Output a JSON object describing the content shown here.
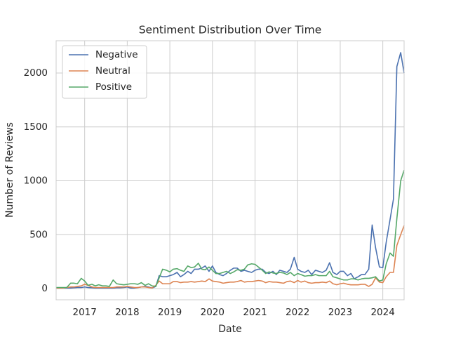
{
  "chart_data": {
    "type": "line",
    "title": "Sentiment Distribution Over Time",
    "x_label": "Date",
    "y_label": "Number of Reviews",
    "x": [
      2016.33,
      2016.42,
      2016.5,
      2016.58,
      2016.67,
      2016.75,
      2016.83,
      2016.92,
      2017.0,
      2017.08,
      2017.17,
      2017.25,
      2017.33,
      2017.42,
      2017.5,
      2017.58,
      2017.67,
      2017.75,
      2017.83,
      2017.92,
      2018.0,
      2018.08,
      2018.17,
      2018.25,
      2018.33,
      2018.42,
      2018.5,
      2018.58,
      2018.67,
      2018.75,
      2018.83,
      2018.92,
      2019.0,
      2019.08,
      2019.17,
      2019.25,
      2019.33,
      2019.42,
      2019.5,
      2019.58,
      2019.67,
      2019.75,
      2019.83,
      2019.92,
      2020.0,
      2020.08,
      2020.17,
      2020.25,
      2020.33,
      2020.42,
      2020.5,
      2020.58,
      2020.67,
      2020.75,
      2020.83,
      2020.92,
      2021.0,
      2021.08,
      2021.17,
      2021.25,
      2021.33,
      2021.42,
      2021.5,
      2021.58,
      2021.67,
      2021.75,
      2021.83,
      2021.92,
      2022.0,
      2022.08,
      2022.17,
      2022.25,
      2022.33,
      2022.42,
      2022.5,
      2022.58,
      2022.67,
      2022.75,
      2022.83,
      2022.92,
      2023.0,
      2023.08,
      2023.17,
      2023.25,
      2023.33,
      2023.42,
      2023.5,
      2023.58,
      2023.67,
      2023.75,
      2023.83,
      2023.92,
      2024.0,
      2024.08,
      2024.17,
      2024.25,
      2024.33,
      2024.42,
      2024.5
    ],
    "series": [
      {
        "name": "Negative",
        "color": "#4c72b0",
        "values": [
          5,
          5,
          5,
          5,
          5,
          8,
          10,
          10,
          15,
          10,
          8,
          5,
          5,
          5,
          5,
          5,
          5,
          8,
          8,
          10,
          15,
          5,
          5,
          10,
          15,
          20,
          15,
          5,
          20,
          120,
          110,
          110,
          120,
          130,
          150,
          110,
          130,
          160,
          140,
          180,
          180,
          190,
          210,
          160,
          210,
          150,
          130,
          120,
          140,
          170,
          190,
          190,
          160,
          170,
          160,
          150,
          170,
          180,
          180,
          150,
          140,
          160,
          130,
          170,
          160,
          150,
          180,
          290,
          180,
          160,
          150,
          170,
          130,
          170,
          160,
          150,
          170,
          240,
          150,
          130,
          160,
          160,
          120,
          140,
          90,
          110,
          130,
          130,
          180,
          590,
          380,
          200,
          195,
          430,
          640,
          830,
          2060,
          2190,
          2000
        ]
      },
      {
        "name": "Neutral",
        "color": "#dd8452",
        "values": [
          5,
          5,
          5,
          10,
          15,
          15,
          20,
          25,
          40,
          30,
          15,
          10,
          10,
          10,
          10,
          10,
          10,
          15,
          15,
          15,
          20,
          15,
          10,
          10,
          15,
          15,
          10,
          5,
          30,
          70,
          45,
          45,
          45,
          65,
          65,
          55,
          60,
          60,
          65,
          60,
          65,
          70,
          65,
          90,
          70,
          65,
          60,
          50,
          55,
          60,
          60,
          65,
          75,
          60,
          65,
          65,
          70,
          75,
          70,
          55,
          65,
          60,
          60,
          55,
          50,
          65,
          70,
          55,
          75,
          60,
          70,
          55,
          50,
          55,
          55,
          60,
          55,
          70,
          45,
          35,
          45,
          50,
          40,
          35,
          35,
          35,
          40,
          40,
          20,
          40,
          100,
          60,
          55,
          110,
          150,
          150,
          400,
          500,
          585
        ]
      },
      {
        "name": "Positive",
        "color": "#55a868",
        "values": [
          10,
          10,
          10,
          10,
          50,
          50,
          45,
          95,
          70,
          30,
          40,
          25,
          35,
          25,
          25,
          20,
          80,
          45,
          40,
          35,
          40,
          45,
          45,
          40,
          55,
          30,
          45,
          25,
          20,
          100,
          180,
          170,
          155,
          180,
          185,
          170,
          160,
          210,
          195,
          200,
          235,
          180,
          175,
          200,
          170,
          140,
          140,
          150,
          160,
          140,
          155,
          175,
          170,
          180,
          220,
          230,
          225,
          200,
          170,
          140,
          155,
          145,
          140,
          150,
          145,
          130,
          150,
          120,
          140,
          130,
          115,
          120,
          120,
          130,
          120,
          120,
          120,
          160,
          110,
          100,
          90,
          80,
          80,
          90,
          90,
          80,
          90,
          95,
          95,
          100,
          110,
          70,
          80,
          230,
          330,
          300,
          650,
          1000,
          1100
        ]
      }
    ],
    "xlim": [
      2016.33,
      2024.5
    ],
    "xticks": [
      2017,
      2018,
      2019,
      2020,
      2021,
      2022,
      2023,
      2024
    ],
    "ylim": [
      -104,
      2300
    ],
    "yticks": [
      0,
      500,
      1000,
      1500,
      2000
    ],
    "grid": true,
    "legend": "upper left"
  }
}
